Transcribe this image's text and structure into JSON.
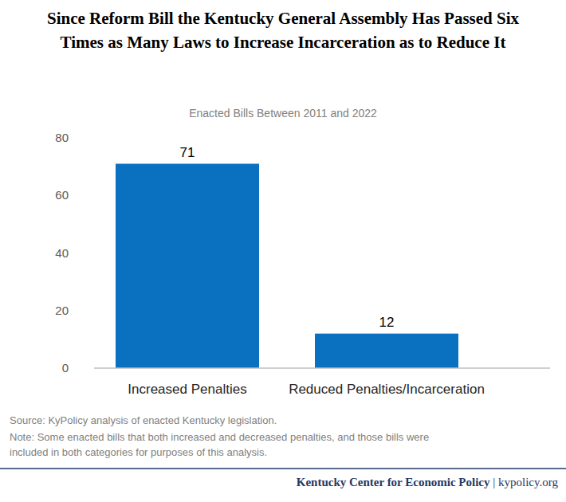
{
  "chart_data": {
    "type": "bar",
    "title": [
      "Since Reform Bill the Kentucky General Assembly Has Passed Six",
      "Times as Many Laws to Increase Incarceration as to Reduce It"
    ],
    "subtitle": "Enacted Bills Between 2011 and 2022",
    "categories": [
      "Increased Penalties",
      "Reduced Penalties/Incarceration"
    ],
    "values": [
      71,
      12
    ],
    "color": "#0a70c0",
    "ylim": [
      0,
      80
    ],
    "yticks": [
      0,
      20,
      40,
      60,
      80
    ],
    "grid": false,
    "data_labels": true,
    "source": "Source: KyPolicy analysis of enacted Kentucky legislation.",
    "note": [
      "Note: Some enacted bills that both increased and decreased penalties, and those bills were",
      " included in both categories for purposes of this analysis."
    ],
    "footer": [
      "Kentucky Center for Economic Policy",
      "| kypolicy.org"
    ]
  }
}
